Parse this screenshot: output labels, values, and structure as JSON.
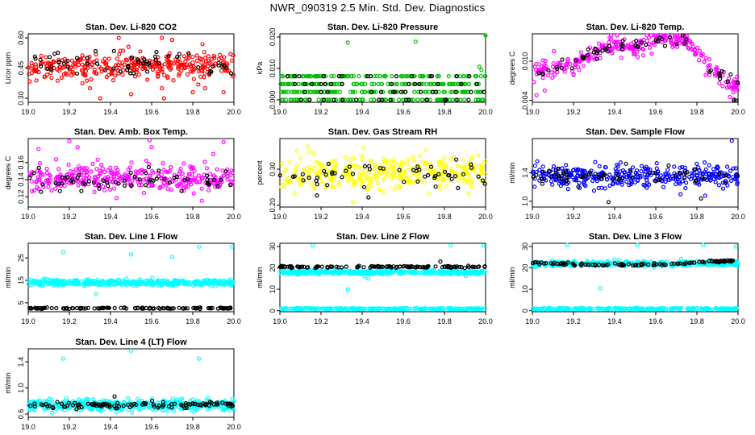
{
  "figure": {
    "title": "NWR_090319  2.5 Min. Std. Dev. Diagnostics"
  },
  "chart_data": [
    {
      "type": "scatter",
      "title": "Stan. Dev. Li-820 CO2",
      "ylabel": "Licor ppm",
      "xlabel": "",
      "xlim": [
        19.0,
        20.0
      ],
      "ylim": [
        0.28,
        0.62
      ],
      "x_ticks": [
        "19.0",
        "19.2",
        "19.4",
        "19.6",
        "19.8",
        "20.0"
      ],
      "y_ticks": [
        0.3,
        0.45,
        0.6
      ],
      "y_tick_labels": [
        "0.30",
        "0.45",
        "0.60"
      ],
      "grid": false,
      "series": [
        {
          "color": "#ff0000",
          "pattern": "noise",
          "center": 0.46,
          "spread": 0.06,
          "count": 320,
          "outliers": [
            [
              19.44,
              0.6
            ],
            [
              19.65,
              0.6
            ],
            [
              19.7,
              0.59
            ],
            [
              19.3,
              0.35
            ],
            [
              19.65,
              0.35
            ],
            [
              19.86,
              0.35
            ],
            [
              19.35,
              0.3
            ],
            [
              19.5,
              0.32
            ],
            [
              19.66,
              0.3
            ],
            [
              19.8,
              0.33
            ],
            [
              19.95,
              0.33
            ]
          ]
        },
        {
          "color": "#000000",
          "pattern": "noise",
          "center": 0.47,
          "spread": 0.05,
          "count": 60,
          "outliers": []
        }
      ]
    },
    {
      "type": "scatter",
      "title": "Stan. Dev. Li-820 Pressure",
      "ylabel": "kPa",
      "xlabel": "",
      "xlim": [
        19.0,
        20.0
      ],
      "ylim": [
        -0.0008,
        0.021
      ],
      "x_ticks": [
        "19.0",
        "19.2",
        "19.4",
        "19.6",
        "19.8",
        "20.0"
      ],
      "y_ticks": [
        0.0,
        0.01,
        0.02
      ],
      "y_tick_labels": [
        "0.000",
        "0.010",
        "0.020"
      ],
      "grid": false,
      "series": [
        {
          "color": "#00bb00",
          "pattern": "levels",
          "levels": [
            0.0,
            0.0025,
            0.005,
            0.0075
          ],
          "count": 360,
          "outliers": [
            [
              19.33,
              0.0182
            ],
            [
              19.66,
              0.0185
            ],
            [
              19.97,
              0.0105
            ],
            [
              19.98,
              0.0095
            ],
            [
              20.0,
              0.0205
            ]
          ]
        },
        {
          "color": "#000000",
          "pattern": "levels",
          "levels": [
            0.0,
            0.0025,
            0.005,
            0.0075
          ],
          "count": 60,
          "outliers": []
        }
      ]
    },
    {
      "type": "scatter",
      "title": "Stan. Dev. Li-820 Temp.",
      "ylabel": "degrees C",
      "xlabel": "",
      "xlim": [
        19.0,
        20.0
      ],
      "ylim": [
        0.0037,
        0.0142
      ],
      "x_ticks": [
        "19.0",
        "19.2",
        "19.4",
        "19.6",
        "19.8",
        "20.0"
      ],
      "y_ticks": [
        0.004,
        0.01
      ],
      "y_tick_labels": [
        "0.004",
        "0.010"
      ],
      "grid": false,
      "series": [
        {
          "color": "#ff00ff",
          "pattern": "curve",
          "curve": [
            [
              19.0,
              0.0085
            ],
            [
              19.1,
              0.009
            ],
            [
              19.2,
              0.0095
            ],
            [
              19.3,
              0.0115
            ],
            [
              19.4,
              0.0125
            ],
            [
              19.5,
              0.012
            ],
            [
              19.6,
              0.0132
            ],
            [
              19.7,
              0.0133
            ],
            [
              19.75,
              0.013
            ],
            [
              19.8,
              0.0115
            ],
            [
              19.85,
              0.009
            ],
            [
              19.9,
              0.008
            ],
            [
              20.0,
              0.006
            ]
          ],
          "spread": 0.0011,
          "count": 300,
          "outliers": [
            [
              19.02,
              0.0048
            ],
            [
              19.06,
              0.0055
            ],
            [
              19.96,
              0.0045
            ],
            [
              19.98,
              0.0042
            ]
          ]
        },
        {
          "color": "#000000",
          "pattern": "curve",
          "curve": [
            [
              19.0,
              0.0085
            ],
            [
              19.1,
              0.009
            ],
            [
              19.2,
              0.0095
            ],
            [
              19.3,
              0.0115
            ],
            [
              19.4,
              0.0125
            ],
            [
              19.5,
              0.012
            ],
            [
              19.6,
              0.0132
            ],
            [
              19.7,
              0.0133
            ],
            [
              19.75,
              0.013
            ],
            [
              19.8,
              0.0115
            ],
            [
              19.85,
              0.009
            ],
            [
              19.9,
              0.008
            ],
            [
              20.0,
              0.006
            ]
          ],
          "spread": 0.0009,
          "count": 55,
          "outliers": [
            [
              19.98,
              0.004
            ],
            [
              19.99,
              0.0039
            ]
          ]
        }
      ]
    },
    {
      "type": "scatter",
      "title": "Stan. Dev. Amb. Box Temp.",
      "ylabel": "degrees C",
      "xlabel": "",
      "xlim": [
        19.0,
        20.0
      ],
      "ylim": [
        0.108,
        0.188
      ],
      "x_ticks": [
        "19.0",
        "19.2",
        "19.4",
        "19.6",
        "19.8",
        "20.0"
      ],
      "y_ticks": [
        0.12,
        0.14,
        0.16
      ],
      "y_tick_labels": [
        "0.12",
        "0.14",
        "0.16"
      ],
      "grid": false,
      "series": [
        {
          "color": "#ff00ff",
          "pattern": "noise",
          "center": 0.142,
          "spread": 0.014,
          "count": 330,
          "outliers": [
            [
              19.05,
              0.176
            ],
            [
              19.2,
              0.185
            ],
            [
              19.24,
              0.178
            ],
            [
              19.59,
              0.186
            ],
            [
              19.95,
              0.184
            ],
            [
              19.6,
              0.178
            ],
            [
              19.9,
              0.17
            ]
          ]
        },
        {
          "color": "#000000",
          "pattern": "noise",
          "center": 0.138,
          "spread": 0.011,
          "count": 60,
          "outliers": []
        }
      ]
    },
    {
      "type": "scatter",
      "title": "Stan. Dev. Gas Stream RH",
      "ylabel": "percent",
      "xlabel": "",
      "xlim": [
        19.0,
        20.0
      ],
      "ylim": [
        0.195,
        0.385
      ],
      "x_ticks": [
        "19.0",
        "19.2",
        "19.4",
        "19.6",
        "19.8",
        "20.0"
      ],
      "y_ticks": [
        0.2,
        0.3
      ],
      "y_tick_labels": [
        "0.20",
        "0.30"
      ],
      "grid": false,
      "series": [
        {
          "color": "#ffff00",
          "pattern": "noise",
          "center": 0.29,
          "spread": 0.045,
          "count": 330,
          "outliers": []
        },
        {
          "color": "#000000",
          "pattern": "noise",
          "center": 0.28,
          "spread": 0.035,
          "count": 55,
          "outliers": []
        }
      ]
    },
    {
      "type": "scatter",
      "title": "Stan. Dev. Sample Flow",
      "ylabel": "ml/min",
      "xlabel": "",
      "xlim": [
        19.0,
        20.0
      ],
      "ylim": [
        0.92,
        1.88
      ],
      "x_ticks": [
        "19.0",
        "19.2",
        "19.4",
        "19.6",
        "19.8",
        "20.0"
      ],
      "y_ticks": [
        1.0,
        1.4
      ],
      "y_tick_labels": [
        "1.0",
        "1.4"
      ],
      "grid": false,
      "series": [
        {
          "color": "#0000ff",
          "pattern": "noise",
          "center": 1.36,
          "spread": 0.14,
          "count": 340,
          "outliers": [
            [
              19.97,
              1.85
            ],
            [
              19.72,
              1.1
            ],
            [
              19.84,
              1.08
            ],
            [
              19.3,
              1.15
            ]
          ]
        },
        {
          "color": "#000000",
          "pattern": "noise",
          "center": 1.36,
          "spread": 0.11,
          "count": 55,
          "outliers": [
            [
              19.37,
              0.99
            ],
            [
              19.82,
              1.04
            ]
          ]
        }
      ]
    },
    {
      "type": "scatter",
      "title": "Stan. Dev. Line 1 Flow",
      "ylabel": "ml/min",
      "xlabel": "",
      "xlim": [
        19.0,
        20.0
      ],
      "ylim": [
        1.0,
        31.5
      ],
      "x_ticks": [
        "19.0",
        "19.2",
        "19.4",
        "19.6",
        "19.8",
        "20.0"
      ],
      "y_ticks": [
        5,
        15,
        25
      ],
      "y_tick_labels": [
        "5",
        "15",
        "25"
      ],
      "grid": false,
      "series": [
        {
          "color": "#00ffff",
          "pattern": "noise",
          "center": 14.0,
          "spread": 1.1,
          "count": 420,
          "outliers": [
            [
              19.17,
              27.5
            ],
            [
              19.5,
              26.5
            ],
            [
              19.7,
              25.5
            ],
            [
              19.83,
              30.0
            ],
            [
              19.99,
              30.0
            ],
            [
              19.33,
              9.0
            ]
          ]
        },
        {
          "color": "#000000",
          "pattern": "noise",
          "center": 2.6,
          "spread": 0.25,
          "count": 120,
          "outliers": []
        }
      ]
    },
    {
      "type": "scatter",
      "title": "Stan. Dev. Line 2 Flow",
      "ylabel": "ml/min",
      "xlabel": "",
      "xlim": [
        19.0,
        20.0
      ],
      "ylim": [
        -0.5,
        31.5
      ],
      "x_ticks": [
        "19.0",
        "19.2",
        "19.4",
        "19.6",
        "19.8",
        "20.0"
      ],
      "y_ticks": [
        0,
        10,
        20,
        30
      ],
      "y_tick_labels": [
        "0",
        "10",
        "20",
        "30"
      ],
      "grid": false,
      "series": [
        {
          "color": "#00ffff",
          "pattern": "noise",
          "center": 18.0,
          "spread": 0.9,
          "count": 380,
          "outliers": [
            [
              19.16,
              30.5
            ],
            [
              19.33,
              10.0
            ],
            [
              19.83,
              30.5
            ],
            [
              19.99,
              30.5
            ],
            [
              19.43,
              15.0
            ]
          ]
        },
        {
          "color": "#00ffff",
          "pattern": "noise",
          "center": 0.9,
          "spread": 0.3,
          "count": 260,
          "outliers": []
        },
        {
          "color": "#000000",
          "pattern": "noise",
          "center": 20.5,
          "spread": 0.35,
          "count": 120,
          "outliers": [
            [
              19.78,
              23.0
            ]
          ]
        }
      ]
    },
    {
      "type": "scatter",
      "title": "Stan. Dev. Line 3 Flow",
      "ylabel": "ml/min",
      "xlabel": "",
      "xlim": [
        19.0,
        20.0
      ],
      "ylim": [
        -0.5,
        31.5
      ],
      "x_ticks": [
        "19.0",
        "19.2",
        "19.4",
        "19.6",
        "19.8",
        "20.0"
      ],
      "y_ticks": [
        0,
        10,
        20,
        30
      ],
      "y_tick_labels": [
        "0",
        "10",
        "20",
        "30"
      ],
      "grid": false,
      "series": [
        {
          "color": "#00ffff",
          "pattern": "noise",
          "center": 22.0,
          "spread": 1.0,
          "count": 380,
          "outliers": [
            [
              19.17,
              31.0
            ],
            [
              19.33,
              10.5
            ],
            [
              19.51,
              31.0
            ],
            [
              19.83,
              31.0
            ],
            [
              19.99,
              30.0
            ]
          ]
        },
        {
          "color": "#00ffff",
          "pattern": "noise",
          "center": 0.9,
          "spread": 0.3,
          "count": 260,
          "outliers": []
        },
        {
          "color": "#000000",
          "pattern": "curve",
          "curve": [
            [
              19.0,
              22.5
            ],
            [
              19.3,
              21.5
            ],
            [
              19.6,
              21.5
            ],
            [
              19.8,
              22.5
            ],
            [
              20.0,
              23.5
            ]
          ],
          "spread": 0.4,
          "count": 110,
          "outliers": []
        }
      ]
    },
    {
      "type": "scatter",
      "title": "Stan. Dev. Line 4 (LT) Flow",
      "ylabel": "ml/min",
      "xlabel": "",
      "xlim": [
        19.0,
        20.0
      ],
      "ylim": [
        0.55,
        1.6
      ],
      "x_ticks": [
        "19.0",
        "19.2",
        "19.4",
        "19.6",
        "19.8",
        "20.0"
      ],
      "y_ticks": [
        0.6,
        1.0,
        1.4
      ],
      "y_tick_labels": [
        "0.6",
        "1.0",
        "1.4"
      ],
      "grid": false,
      "series": [
        {
          "color": "#00ffff",
          "pattern": "noise",
          "center": 0.74,
          "spread": 0.07,
          "count": 440,
          "outliers": [
            [
              19.17,
              1.45
            ],
            [
              19.5,
              1.57
            ],
            [
              19.83,
              1.45
            ]
          ]
        },
        {
          "color": "#000000",
          "pattern": "noise",
          "center": 0.74,
          "spread": 0.04,
          "count": 110,
          "outliers": [
            [
              19.42,
              0.87
            ]
          ]
        }
      ]
    }
  ]
}
